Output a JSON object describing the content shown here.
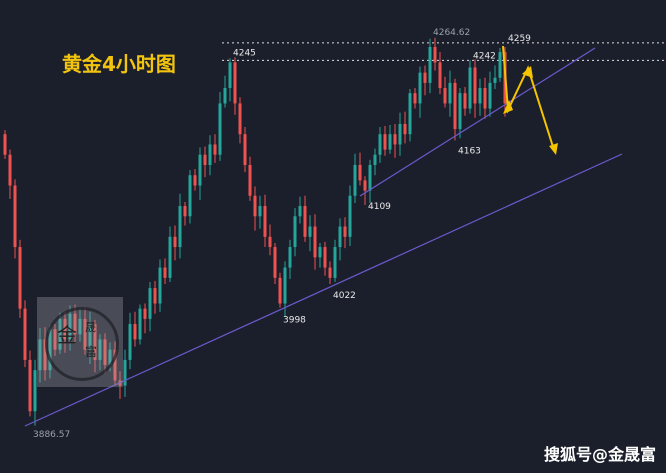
{
  "title": "黄金4小时图",
  "watermark": "搜狐号@金晟富",
  "logo_text": "金晟富",
  "colors": {
    "up": "#26a69a",
    "down": "#ef5350",
    "trend": "#6a5acd",
    "arrow": "#f5c400",
    "title": "#f2c40f",
    "background": "#1b1f2b"
  },
  "chart_data": {
    "type": "candlestick",
    "title": "黄金4小时图",
    "ylim": [
      3870,
      4275
    ],
    "grid": false,
    "closes": [
      4150,
      4120,
      4060,
      4000,
      3950,
      3900,
      3940,
      3970,
      3940,
      3980,
      3960,
      3990,
      3970,
      3995,
      3975,
      3990,
      3960,
      3985,
      3950,
      3970,
      3945,
      3960,
      3930,
      3925,
      3950,
      3985,
      3970,
      4000,
      3990,
      4020,
      4005,
      4040,
      4030,
      4070,
      4060,
      4100,
      4090,
      4130,
      4120,
      4150,
      4140,
      4160,
      4150,
      4200,
      4215,
      4240,
      4200,
      4170,
      4140,
      4110,
      4090,
      4100,
      4070,
      4060,
      4030,
      4005,
      4040,
      4060,
      4090,
      4100,
      4070,
      4080,
      4050,
      4060,
      4040,
      4030,
      4060,
      4080,
      4070,
      4110,
      4140,
      4125,
      4115,
      4140,
      4150,
      4170,
      4155,
      4170,
      4160,
      4180,
      4170,
      4210,
      4200,
      4230,
      4220,
      4255,
      4240,
      4215,
      4200,
      4220,
      4175,
      4210,
      4195,
      4235,
      4200,
      4215,
      4195,
      4220,
      4225,
      4250,
      4200
    ],
    "price_labels": [
      {
        "text": "3886.57",
        "price": 3886.57,
        "index": 5
      },
      {
        "text": "4245",
        "price": 4245,
        "index": 45
      },
      {
        "text": "3998",
        "price": 3998,
        "index": 55
      },
      {
        "text": "4022",
        "price": 4022,
        "index": 65
      },
      {
        "text": "4109",
        "price": 4109,
        "index": 72
      },
      {
        "text": "4264.62",
        "price": 4264.62,
        "index": 85
      },
      {
        "text": "4163",
        "price": 4163,
        "index": 90
      },
      {
        "text": "4242",
        "price": 4242,
        "index": 93
      },
      {
        "text": "4259",
        "price": 4259,
        "index": 100
      }
    ],
    "levels": [
      4259,
      4242
    ]
  }
}
